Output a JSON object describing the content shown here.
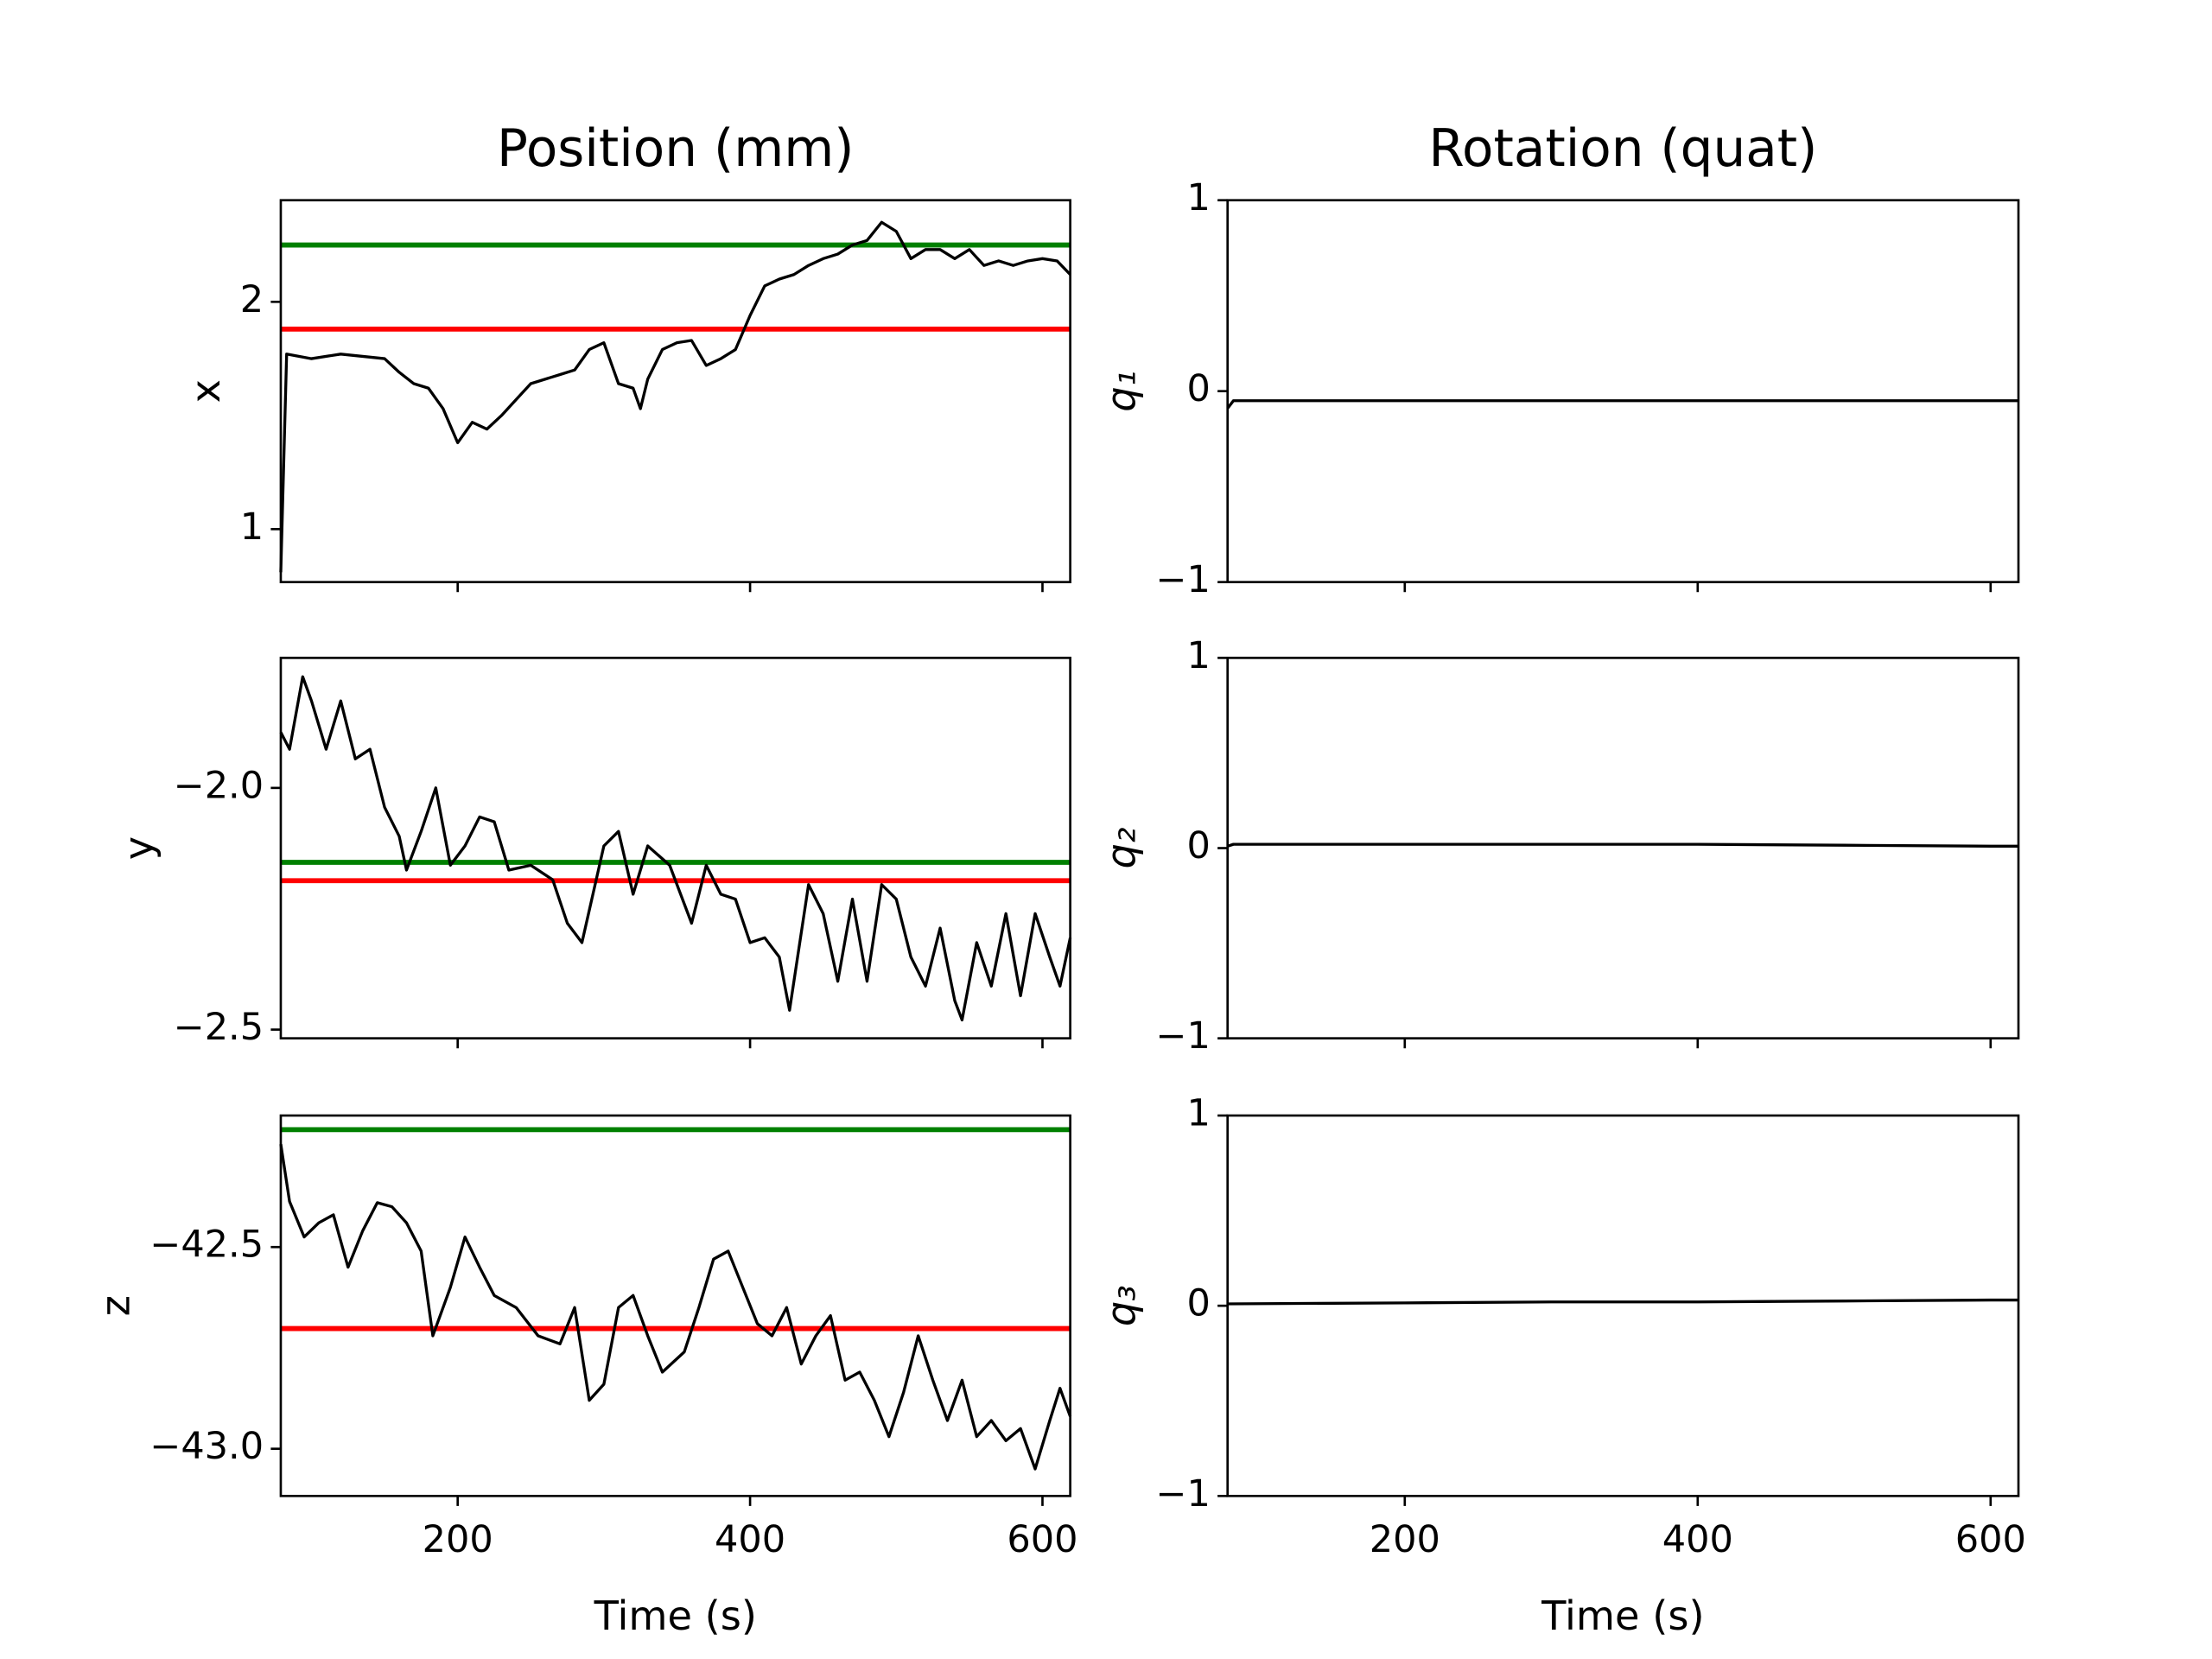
{
  "chart_data": [
    {
      "type": "line",
      "title": "Position (mm)",
      "ylabel": "x",
      "xtick_labels": false,
      "xlim": [
        79,
        619
      ],
      "xticks": [
        200,
        400,
        600
      ],
      "ylim": [
        0.767,
        2.447
      ],
      "yticks": [
        1,
        2
      ],
      "hlines": [
        {
          "value": 2.25,
          "color": "#008000"
        },
        {
          "value": 1.88,
          "color": "#ff0000"
        }
      ],
      "series": [
        {
          "color": "#000000",
          "x": [
            79,
            83,
            100,
            120,
            150,
            160,
            170,
            180,
            190,
            200,
            210,
            220,
            230,
            240,
            250,
            260,
            270,
            280,
            290,
            300,
            310,
            320,
            325,
            330,
            340,
            350,
            360,
            370,
            380,
            390,
            400,
            410,
            420,
            430,
            440,
            450,
            460,
            470,
            480,
            490,
            500,
            510,
            520,
            530,
            540,
            550,
            560,
            570,
            580,
            590,
            600,
            610,
            619
          ],
          "values": [
            0.81,
            1.77,
            1.75,
            1.77,
            1.75,
            1.69,
            1.64,
            1.62,
            1.53,
            1.38,
            1.47,
            1.44,
            1.5,
            1.57,
            1.64,
            1.66,
            1.68,
            1.7,
            1.79,
            1.82,
            1.64,
            1.62,
            1.53,
            1.66,
            1.79,
            1.82,
            1.83,
            1.72,
            1.75,
            1.79,
            1.94,
            2.07,
            2.1,
            2.12,
            2.16,
            2.19,
            2.21,
            2.25,
            2.27,
            2.35,
            2.31,
            2.19,
            2.23,
            2.23,
            2.19,
            2.23,
            2.16,
            2.18,
            2.16,
            2.18,
            2.19,
            2.18,
            2.12
          ]
        }
      ]
    },
    {
      "type": "line",
      "title": "Rotation (quat)",
      "ylabel": "q₁",
      "xtick_labels": false,
      "xlim": [
        79,
        619
      ],
      "xticks": [
        200,
        400,
        600
      ],
      "ylim": [
        -1,
        1
      ],
      "yticks": [
        {
          "value": -1,
          "label": "−1"
        },
        0,
        1
      ],
      "series": [
        {
          "color": "#000000",
          "x": [
            79,
            83,
            100,
            200,
            300,
            400,
            500,
            600,
            619
          ],
          "values": [
            -0.09,
            -0.05,
            -0.05,
            -0.05,
            -0.05,
            -0.05,
            -0.05,
            -0.05,
            -0.05
          ]
        }
      ]
    },
    {
      "type": "line",
      "ylabel": "y",
      "xtick_labels": false,
      "xlim": [
        79,
        619
      ],
      "xticks": [
        200,
        400,
        600
      ],
      "ylim": [
        -2.518,
        -1.731
      ],
      "yticks": [
        {
          "value": -2.5,
          "label": "−2.5"
        },
        {
          "value": -2.0,
          "label": "−2.0"
        }
      ],
      "hlines": [
        {
          "value": -2.154,
          "color": "#008000"
        },
        {
          "value": -2.192,
          "color": "#ff0000"
        }
      ],
      "series": [
        {
          "color": "#000000",
          "x": [
            79,
            85,
            94,
            100,
            110,
            120,
            130,
            140,
            150,
            160,
            165,
            175,
            185,
            195,
            205,
            215,
            225,
            235,
            250,
            265,
            275,
            285,
            300,
            310,
            320,
            330,
            345,
            360,
            370,
            380,
            390,
            400,
            410,
            420,
            427,
            440,
            450,
            460,
            470,
            480,
            490,
            500,
            510,
            520,
            530,
            540,
            545,
            555,
            565,
            575,
            585,
            595,
            605,
            612,
            619
          ],
          "values": [
            -1.885,
            -1.92,
            -1.77,
            -1.82,
            -1.92,
            -1.82,
            -1.94,
            -1.92,
            -2.04,
            -2.1,
            -2.17,
            -2.09,
            -2.0,
            -2.16,
            -2.12,
            -2.06,
            -2.07,
            -2.17,
            -2.16,
            -2.19,
            -2.28,
            -2.32,
            -2.12,
            -2.09,
            -2.22,
            -2.12,
            -2.16,
            -2.28,
            -2.16,
            -2.22,
            -2.23,
            -2.32,
            -2.31,
            -2.35,
            -2.46,
            -2.2,
            -2.26,
            -2.4,
            -2.23,
            -2.4,
            -2.2,
            -2.23,
            -2.35,
            -2.41,
            -2.29,
            -2.44,
            -2.48,
            -2.32,
            -2.41,
            -2.26,
            -2.43,
            -2.26,
            -2.35,
            -2.41,
            -2.31
          ]
        }
      ]
    },
    {
      "type": "line",
      "ylabel": "q₂",
      "xtick_labels": false,
      "xlim": [
        79,
        619
      ],
      "xticks": [
        200,
        400,
        600
      ],
      "ylim": [
        -1,
        1
      ],
      "yticks": [
        {
          "value": -1,
          "label": "−1"
        },
        0,
        1
      ],
      "series": [
        {
          "color": "#000000",
          "x": [
            79,
            83,
            200,
            300,
            400,
            500,
            600,
            619
          ],
          "values": [
            0.01,
            0.02,
            0.02,
            0.02,
            0.02,
            0.015,
            0.01,
            0.01
          ]
        }
      ]
    },
    {
      "type": "line",
      "ylabel": "z",
      "xlabel": "Time (s)",
      "xtick_labels": true,
      "xlim": [
        79,
        619
      ],
      "xticks": [
        200,
        400,
        600
      ],
      "ylim": [
        -43.117,
        -42.174
      ],
      "yticks": [
        {
          "value": -43.0,
          "label": "−43.0"
        },
        {
          "value": -42.5,
          "label": "−42.5"
        }
      ],
      "hlines": [
        {
          "value": -42.209,
          "color": "#008000"
        },
        {
          "value": -42.702,
          "color": "#ff0000"
        }
      ],
      "series": [
        {
          "color": "#000000",
          "x": [
            79,
            85,
            95,
            105,
            115,
            125,
            135,
            145,
            155,
            165,
            175,
            183,
            195,
            205,
            215,
            225,
            240,
            255,
            270,
            280,
            290,
            300,
            310,
            320,
            330,
            340,
            355,
            365,
            375,
            385,
            395,
            405,
            415,
            425,
            435,
            445,
            455,
            465,
            475,
            485,
            495,
            505,
            515,
            525,
            535,
            545,
            555,
            565,
            575,
            585,
            595,
            605,
            612,
            619
          ],
          "values": [
            -42.245,
            -42.387,
            -42.475,
            -42.44,
            -42.42,
            -42.55,
            -42.46,
            -42.39,
            -42.4,
            -42.44,
            -42.51,
            -42.72,
            -42.6,
            -42.475,
            -42.55,
            -42.62,
            -42.65,
            -42.72,
            -42.74,
            -42.65,
            -42.88,
            -42.84,
            -42.65,
            -42.62,
            -42.72,
            -42.81,
            -42.76,
            -42.65,
            -42.53,
            -42.51,
            -42.6,
            -42.69,
            -42.72,
            -42.65,
            -42.79,
            -42.72,
            -42.67,
            -42.83,
            -42.81,
            -42.88,
            -42.97,
            -42.86,
            -42.72,
            -42.83,
            -42.93,
            -42.83,
            -42.97,
            -42.93,
            -42.98,
            -42.95,
            -43.05,
            -42.93,
            -42.85,
            -42.92
          ]
        }
      ]
    },
    {
      "type": "line",
      "ylabel": "q₃",
      "xlabel": "Time (s)",
      "xtick_labels": true,
      "xlim": [
        79,
        619
      ],
      "xticks": [
        200,
        400,
        600
      ],
      "ylim": [
        -1,
        1
      ],
      "yticks": [
        {
          "value": -1,
          "label": "−1"
        },
        0,
        1
      ],
      "series": [
        {
          "color": "#000000",
          "x": [
            79,
            200,
            300,
            400,
            500,
            600,
            619
          ],
          "values": [
            0.01,
            0.015,
            0.02,
            0.02,
            0.025,
            0.03,
            0.03
          ]
        }
      ]
    }
  ]
}
